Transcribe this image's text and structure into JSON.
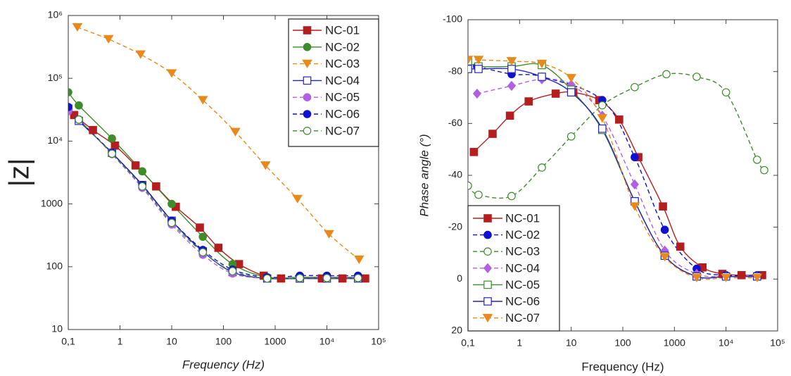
{
  "chart_data": [
    {
      "type": "line",
      "xlabel": "Frequency (Hz)",
      "ylabel": "|z|",
      "xscale": "log",
      "yscale": "log",
      "legend": "top-right",
      "xlim": [
        0.1,
        100000
      ],
      "ylim": [
        10,
        1000000
      ],
      "xticks": [
        {
          "value": 0.1,
          "label": "0,1"
        },
        1,
        10,
        100,
        1000,
        {
          "value": 10000,
          "label": "10⁴"
        },
        {
          "value": 100000,
          "label": "10⁵"
        }
      ],
      "yticks": [
        10,
        100,
        1000,
        {
          "value": 10000,
          "label": "10⁴"
        },
        {
          "value": 100000,
          "label": "10⁵"
        },
        {
          "value": 1000000,
          "label": "10⁶"
        }
      ],
      "series": [
        {
          "name": "NC-01",
          "color": "#b41e1e",
          "marker": "square",
          "filled": true,
          "line": "solid",
          "x": [
            0.13,
            0.3,
            0.8,
            2,
            5,
            12,
            35,
            80,
            200,
            600,
            1300,
            3000,
            8000,
            20000,
            55000
          ],
          "values": [
            26000,
            15000,
            8500,
            4100,
            1900,
            900,
            420,
            200,
            110,
            72,
            65,
            65,
            65,
            65,
            65
          ]
        },
        {
          "name": "NC-02",
          "color": "#3d8c2a",
          "marker": "circle",
          "filled": true,
          "line": "solid",
          "x": [
            0.1,
            0.16,
            0.7,
            2.7,
            10,
            40,
            150,
            700,
            3000,
            10000,
            40000
          ],
          "values": [
            60000,
            37000,
            11000,
            3300,
            1000,
            300,
            110,
            68,
            68,
            68,
            68
          ]
        },
        {
          "name": "NC-03",
          "color": "#e8891c",
          "marker": "triangle-down",
          "filled": true,
          "line": "dashed",
          "x": [
            0.15,
            0.6,
            2.5,
            10,
            40,
            170,
            650,
            2700,
            11000,
            42000
          ],
          "values": [
            650000,
            420000,
            240000,
            120000,
            45000,
            14000,
            4100,
            1200,
            330,
            130
          ]
        },
        {
          "name": "NC-04",
          "color": "#2424c0",
          "marker": "square",
          "filled": false,
          "line": "solid",
          "x": [
            0.1,
            0.16,
            0.7,
            2.7,
            10,
            40,
            150,
            700,
            3000,
            10000,
            40000
          ],
          "values": [
            33000,
            21000,
            6500,
            2000,
            540,
            175,
            82,
            65,
            65,
            65,
            65
          ]
        },
        {
          "name": "NC-05",
          "color": "#b060e0",
          "marker": "circle",
          "filled": true,
          "line": "dashed",
          "x": [
            0.1,
            0.16,
            0.7,
            2.7,
            10,
            40,
            150,
            700,
            3000,
            10000,
            40000
          ],
          "values": [
            30000,
            22000,
            6200,
            1800,
            470,
            155,
            78,
            65,
            67,
            68,
            68
          ]
        },
        {
          "name": "NC-06",
          "color": "#1010d0",
          "marker": "circle",
          "filled": true,
          "line": "dashed",
          "x": [
            0.1,
            0.16,
            0.7,
            2.7,
            10,
            40,
            150,
            700,
            3000,
            10000,
            40000
          ],
          "values": [
            35000,
            22000,
            6500,
            2000,
            540,
            185,
            90,
            68,
            72,
            72,
            72
          ]
        },
        {
          "name": "NC-07",
          "color": "#3d8c2a",
          "marker": "circle",
          "filled": false,
          "line": "dashed",
          "x": [
            0.16,
            0.7,
            2.7,
            10,
            40,
            150,
            700,
            3000,
            10000,
            40000
          ],
          "values": [
            22000,
            6300,
            1900,
            500,
            170,
            85,
            65,
            66,
            66,
            66
          ]
        }
      ]
    },
    {
      "type": "line",
      "xlabel": "Frequency (Hz)",
      "ylabel": "Phase angle (°)",
      "xscale": "log",
      "yscale": "linear",
      "yreverse": true,
      "legend": "bottom-left",
      "xlim": [
        0.1,
        100000
      ],
      "ylim": [
        -100,
        20
      ],
      "xticks": [
        {
          "value": 0.1,
          "label": "0,1"
        },
        1,
        10,
        100,
        1000,
        {
          "value": 10000,
          "label": "10⁴"
        },
        {
          "value": 100000,
          "label": "10⁵"
        }
      ],
      "yticks": [
        -100,
        -80,
        -60,
        -40,
        -20,
        0,
        20
      ],
      "series": [
        {
          "name": "NC-01",
          "color": "#b41e1e",
          "marker": "square",
          "filled": true,
          "line": "solid",
          "x": [
            0.13,
            0.3,
            0.65,
            1.5,
            5,
            11,
            35,
            85,
            200,
            600,
            1300,
            3500,
            8500,
            20000,
            50000
          ],
          "values": [
            -49,
            -56,
            -63,
            -68.5,
            -71.5,
            -72,
            -69,
            -61.5,
            -47,
            -28,
            -12.5,
            -4.5,
            -2,
            -1.5,
            -1.5
          ]
        },
        {
          "name": "NC-02",
          "color": "#1010d0",
          "marker": "circle",
          "filled": true,
          "line": "dashed",
          "x": [
            0.15,
            0.7,
            2.7,
            40,
            170,
            650,
            2700,
            10000,
            40000
          ],
          "values": [
            -82,
            -79,
            -78,
            -69,
            -47,
            -19,
            -4,
            -1.5,
            -1.5
          ]
        },
        {
          "name": "NC-03",
          "color": "#3d8c2a",
          "marker": "circle",
          "filled": false,
          "line": "dashed",
          "x": [
            0.1,
            0.16,
            0.7,
            2.7,
            10,
            40,
            170,
            700,
            2700,
            10000,
            40000,
            55000
          ],
          "values": [
            -36,
            -32.5,
            -32,
            -43,
            -55,
            -67,
            -74,
            -79,
            -78,
            -72,
            -46,
            -42
          ]
        },
        {
          "name": "NC-04",
          "color": "#b060e0",
          "marker": "diamond",
          "filled": true,
          "line": "dashed",
          "x": [
            0.15,
            0.7,
            2.7,
            10,
            40,
            170,
            650,
            2700,
            10000,
            40000
          ],
          "values": [
            -71.5,
            -74.5,
            -77,
            -75,
            -63,
            -36.5,
            -11,
            -2,
            -1,
            -1
          ]
        },
        {
          "name": "NC-05",
          "color": "#3d8c2a",
          "marker": "square",
          "filled": false,
          "line": "solid",
          "x": [
            0.1,
            0.16,
            0.7,
            2.7,
            10,
            40,
            170,
            650,
            2700,
            10000,
            40000
          ],
          "values": [
            -84,
            -82,
            -82,
            -82.5,
            -73,
            -57.5,
            -30,
            -9,
            -1,
            -1,
            -1
          ]
        },
        {
          "name": "NC-06",
          "color": "#2424c0",
          "marker": "square",
          "filled": false,
          "line": "solid",
          "x": [
            0.1,
            0.16,
            0.7,
            2.7,
            10,
            40,
            170,
            650,
            2700,
            10000,
            40000
          ],
          "values": [
            -81,
            -81,
            -81,
            -78,
            -72,
            -58,
            -30,
            -9,
            -1,
            -1,
            -1
          ]
        },
        {
          "name": "NC-07",
          "color": "#e8891c",
          "marker": "triangle-down",
          "filled": true,
          "line": "dashed",
          "x": [
            0.1,
            0.16,
            0.7,
            2.7,
            10,
            40,
            170,
            650,
            2700,
            10000,
            40000
          ],
          "values": [
            -84.5,
            -84.5,
            -84,
            -83,
            -77.5,
            -62,
            -28,
            -8.5,
            -0.5,
            -0.5,
            -0.5
          ]
        }
      ]
    }
  ]
}
